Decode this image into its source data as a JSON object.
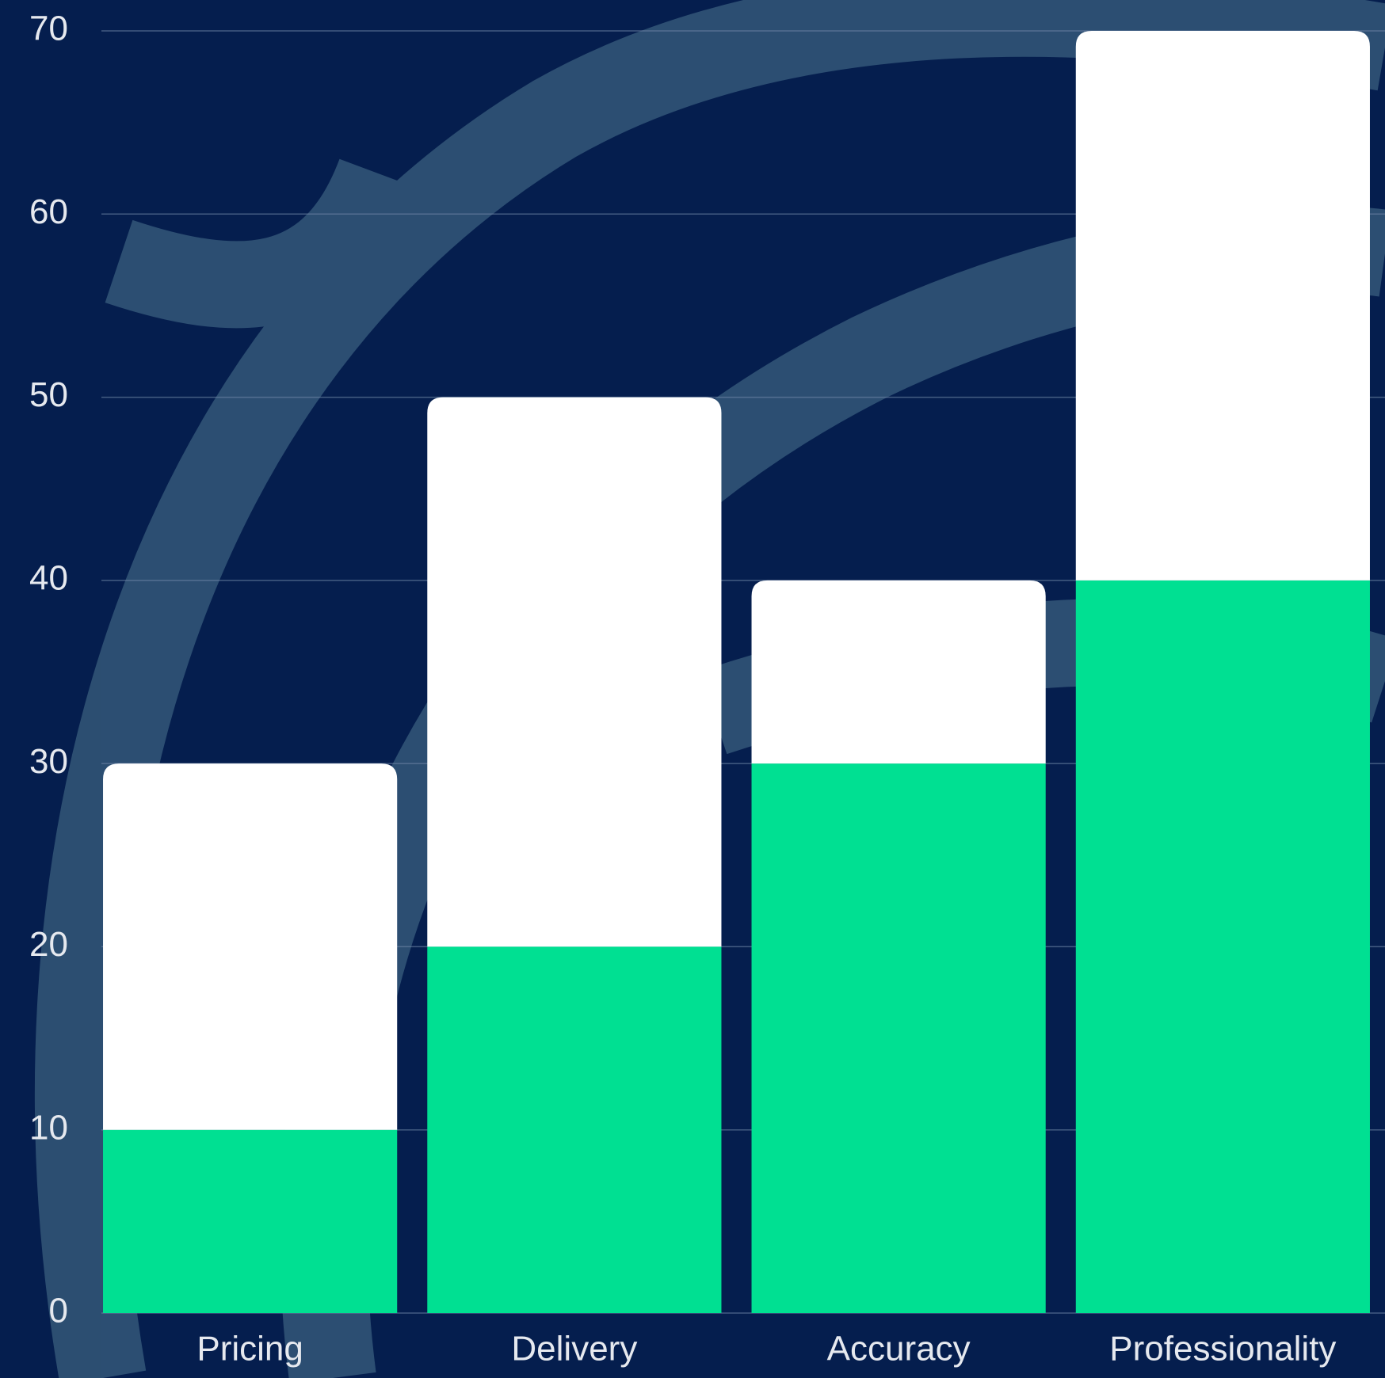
{
  "chart_data": {
    "type": "stacked-bar",
    "categories": [
      "Pricing",
      "Delivery",
      "Accuracy",
      "Professionality"
    ],
    "series": [
      {
        "color": "#00e092",
        "values": [
          10,
          20,
          30,
          40
        ]
      },
      {
        "color": "#ffffff",
        "values": [
          20,
          30,
          10,
          30
        ]
      }
    ],
    "ylim": [
      0,
      70
    ],
    "yticks": [
      0,
      10,
      20,
      30,
      40,
      50,
      60,
      70
    ],
    "grid": true
  }
}
